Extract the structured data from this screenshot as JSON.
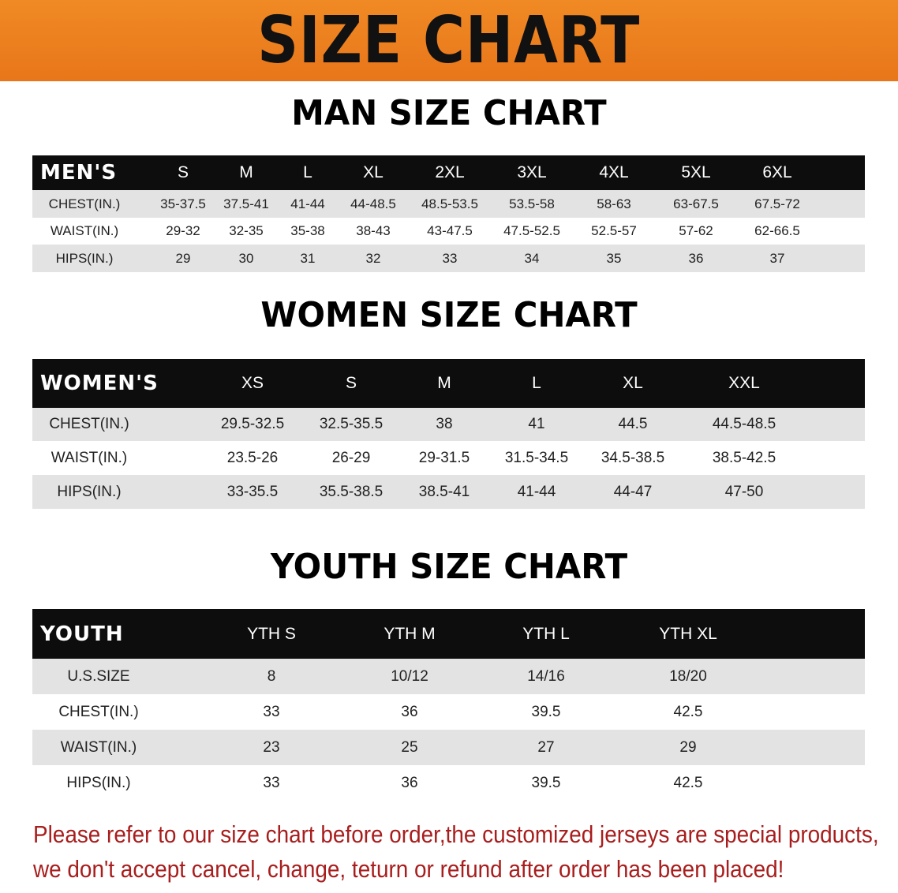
{
  "title": "SIZE CHART",
  "men": {
    "title": "MAN SIZE CHART",
    "header": [
      "MEN'S",
      "S",
      "M",
      "L",
      "XL",
      "2XL",
      "3XL",
      "4XL",
      "5XL",
      "6XL"
    ],
    "rows": [
      [
        "CHEST(IN.)",
        "35-37.5",
        "37.5-41",
        "41-44",
        "44-48.5",
        "48.5-53.5",
        "53.5-58",
        "58-63",
        "63-67.5",
        "67.5-72"
      ],
      [
        "WAIST(IN.)",
        "29-32",
        "32-35",
        "35-38",
        "38-43",
        "43-47.5",
        "47.5-52.5",
        "52.5-57",
        "57-62",
        "62-66.5"
      ],
      [
        "HIPS(IN.)",
        "29",
        "30",
        "31",
        "32",
        "33",
        "34",
        "35",
        "36",
        "37"
      ]
    ]
  },
  "women": {
    "title": "WOMEN SIZE CHART",
    "header": [
      "WOMEN'S",
      "XS",
      "S",
      "M",
      "L",
      "XL",
      "XXL"
    ],
    "rows": [
      [
        "CHEST(IN.)",
        "29.5-32.5",
        "32.5-35.5",
        "38",
        "41",
        "44.5",
        "44.5-48.5"
      ],
      [
        "WAIST(IN.)",
        "23.5-26",
        "26-29",
        "29-31.5",
        "31.5-34.5",
        "34.5-38.5",
        "38.5-42.5"
      ],
      [
        "HIPS(IN.)",
        "33-35.5",
        "35.5-38.5",
        "38.5-41",
        "41-44",
        "44-47",
        "47-50"
      ]
    ]
  },
  "youth": {
    "title": "YOUTH SIZE CHART",
    "header": [
      "YOUTH",
      "YTH S",
      "YTH M",
      "YTH L",
      "YTH XL"
    ],
    "rows": [
      [
        "U.S.SIZE",
        "8",
        "10/12",
        "14/16",
        "18/20"
      ],
      [
        "CHEST(IN.)",
        "33",
        "36",
        "39.5",
        "42.5"
      ],
      [
        "WAIST(IN.)",
        "23",
        "25",
        "27",
        "29"
      ],
      [
        "HIPS(IN.)",
        "33",
        "36",
        "39.5",
        "42.5"
      ]
    ]
  },
  "notice": {
    "line1": "Please refer to our size chart before order,the customized jerseys are special products,",
    "line2": "we don't accept cancel, change, teturn or refund after order has been placed!"
  },
  "colors": {
    "banner": "#ec801f",
    "header_row": "#0d0d0d",
    "shaded_row": "#e3e3e3",
    "notice": "#a81d1d"
  }
}
